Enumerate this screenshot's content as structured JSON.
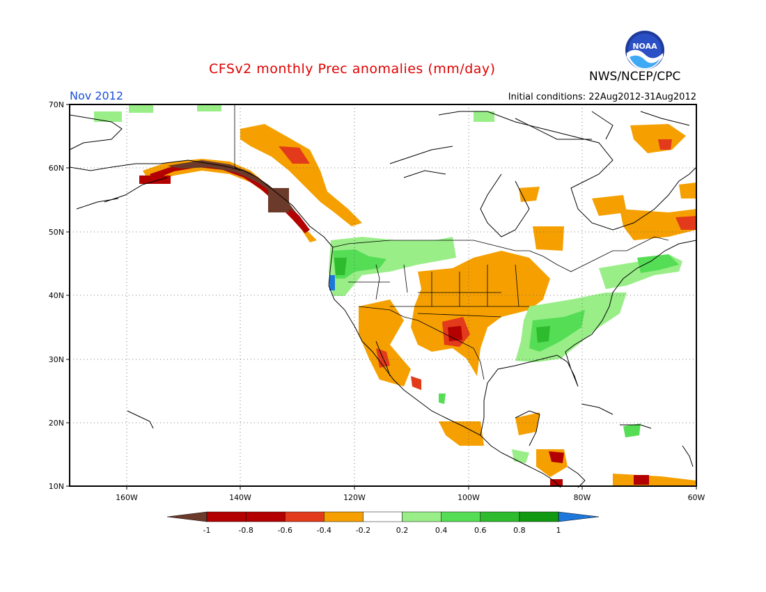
{
  "title": "CFSv2 monthly Prec anomalies (mm/day)",
  "agency": "NWS/NCEP/CPC",
  "logo_text": "NOAA",
  "valid_month": "Nov 2012",
  "initial_conditions": "Initial conditions: 22Aug2012-31Aug2012",
  "lat_labels": [
    "70N",
    "60N",
    "50N",
    "40N",
    "30N",
    "20N",
    "10N"
  ],
  "lon_labels": [
    "160W",
    "140W",
    "120W",
    "100W",
    "80W",
    "60W"
  ],
  "colorbar": {
    "labels": [
      "-1",
      "-0.8",
      "-0.6",
      "-0.4",
      "-0.2",
      "0.2",
      "0.4",
      "0.6",
      "0.8",
      "1"
    ],
    "colors": [
      "#6b3a2a",
      "#b30000",
      "#e23a1a",
      "#f5a000",
      "#ffffff",
      "#99ee88",
      "#55dd55",
      "#2ebb2e",
      "#119911",
      "#1e78dc"
    ]
  }
}
